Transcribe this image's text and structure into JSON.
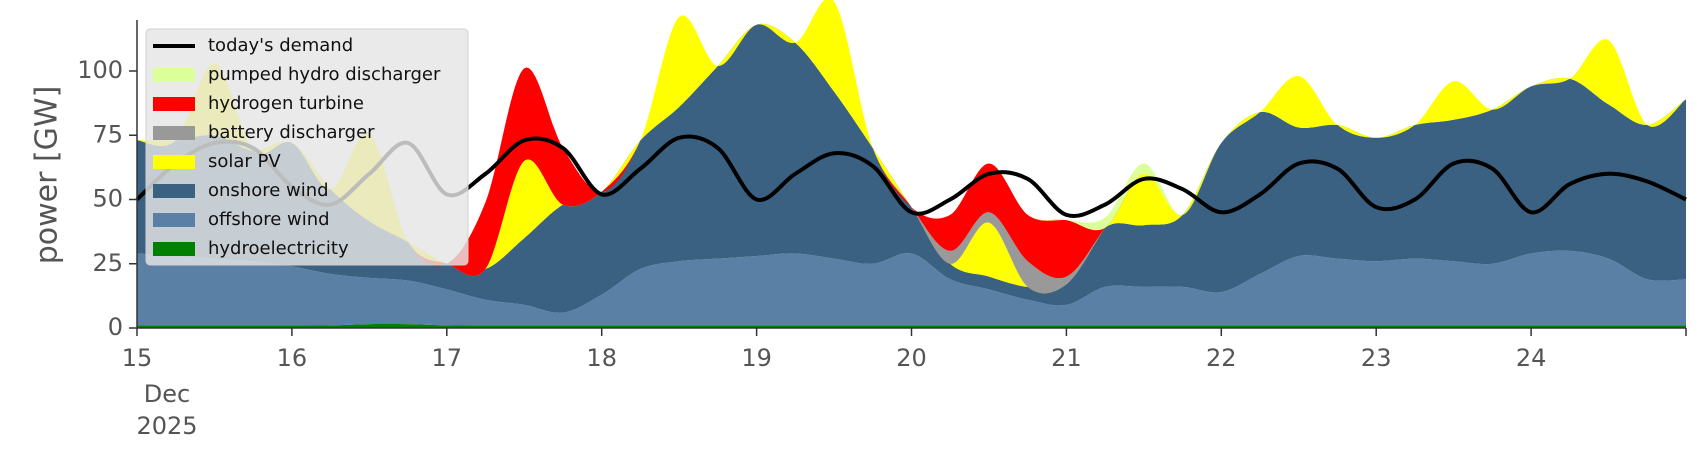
{
  "chart_data": {
    "type": "area",
    "title": "",
    "xlabel": "",
    "ylabel": "power [GW]",
    "ylim": [
      0,
      120
    ],
    "xlim": [
      "2025-12-15",
      "2025-12-25"
    ],
    "y_ticks": [
      0,
      25,
      50,
      75,
      100
    ],
    "x_ticks": [
      "2025-12-15",
      "2025-12-16",
      "2025-12-17",
      "2025-12-18",
      "2025-12-19",
      "2025-12-20",
      "2025-12-21",
      "2025-12-22",
      "2025-12-23",
      "2025-12-24"
    ],
    "x_tick_labels": [
      "15",
      "16",
      "17",
      "18",
      "19",
      "20",
      "21",
      "22",
      "23",
      "24"
    ],
    "x_tick_sublabels": [
      "Dec",
      "2025"
    ],
    "grid": false,
    "legend_position": "top-left",
    "x": [
      "2025-12-15 00:00",
      "2025-12-15 06:00",
      "2025-12-15 12:00",
      "2025-12-15 18:00",
      "2025-12-16 00:00",
      "2025-12-16 06:00",
      "2025-12-16 12:00",
      "2025-12-16 18:00",
      "2025-12-17 00:00",
      "2025-12-17 06:00",
      "2025-12-17 12:00",
      "2025-12-17 18:00",
      "2025-12-18 00:00",
      "2025-12-18 06:00",
      "2025-12-18 12:00",
      "2025-12-18 18:00",
      "2025-12-19 00:00",
      "2025-12-19 06:00",
      "2025-12-19 12:00",
      "2025-12-19 18:00",
      "2025-12-20 00:00",
      "2025-12-20 06:00",
      "2025-12-20 12:00",
      "2025-12-20 18:00",
      "2025-12-21 00:00",
      "2025-12-21 06:00",
      "2025-12-21 12:00",
      "2025-12-21 18:00",
      "2025-12-22 00:00",
      "2025-12-22 06:00",
      "2025-12-22 12:00",
      "2025-12-22 18:00",
      "2025-12-23 00:00",
      "2025-12-23 06:00",
      "2025-12-23 12:00",
      "2025-12-23 18:00",
      "2025-12-24 00:00",
      "2025-12-24 06:00",
      "2025-12-24 12:00",
      "2025-12-24 18:00",
      "2025-12-25 00:00"
    ],
    "series": [
      {
        "name": "hydroelectricity",
        "color": "#008000",
        "values": [
          1,
          1,
          1,
          1,
          1,
          1,
          1.5,
          1.5,
          1,
          1,
          1,
          1,
          1,
          1,
          1,
          1,
          1,
          1,
          1,
          1,
          1,
          1,
          1,
          1,
          1,
          1,
          1,
          1,
          1,
          1,
          1,
          1,
          1,
          1,
          1,
          1,
          1,
          1,
          1,
          1,
          1
        ]
      },
      {
        "name": "offshore wind",
        "color": "#5b80a5",
        "values": [
          28,
          27,
          26,
          25,
          23,
          20,
          18,
          17,
          14,
          10,
          8,
          5,
          12,
          22,
          25,
          26,
          27,
          28,
          26,
          24,
          28,
          18,
          14,
          10,
          8,
          15,
          15,
          15,
          13,
          20,
          27,
          26,
          25,
          26,
          25,
          24,
          28,
          29,
          26,
          18,
          18
        ]
      },
      {
        "name": "onshore wind",
        "color": "#3b6182",
        "values": [
          44,
          45,
          48,
          43,
          48,
          33,
          22,
          15,
          10,
          12,
          26,
          42,
          40,
          50,
          60,
          75,
          90,
          82,
          65,
          45,
          18,
          6,
          5,
          5,
          8,
          23,
          24,
          28,
          58,
          63,
          50,
          52,
          48,
          52,
          55,
          60,
          65,
          67,
          60,
          60,
          70
        ]
      },
      {
        "name": "solar PV",
        "color": "#ffff00",
        "values": [
          0,
          0,
          28,
          0,
          0,
          0,
          34,
          0,
          0,
          0,
          30,
          0,
          0,
          0,
          35,
          0,
          0,
          0,
          35,
          0,
          0,
          0,
          21,
          0,
          0,
          0,
          20,
          0,
          0,
          0,
          20,
          0,
          0,
          0,
          15,
          0,
          0,
          0,
          25,
          0,
          0
        ]
      },
      {
        "name": "battery discharger",
        "color": "#999999",
        "values": [
          0,
          0,
          0,
          0,
          0,
          0,
          0,
          0,
          0,
          0,
          0,
          0,
          0,
          0,
          0,
          0,
          0,
          0,
          0,
          0,
          0,
          5,
          4,
          10,
          3,
          0,
          0,
          0,
          0,
          0,
          0,
          0,
          0,
          0,
          0,
          0,
          0,
          0,
          0,
          0,
          0
        ]
      },
      {
        "name": "hydrogen turbine",
        "color": "#ff0000",
        "values": [
          0,
          0,
          0,
          0,
          0,
          0,
          0,
          0,
          0,
          26,
          36,
          22,
          0,
          0,
          0,
          0,
          0,
          0,
          0,
          0,
          0,
          14,
          19,
          18,
          22,
          0,
          0,
          0,
          0,
          0,
          0,
          0,
          0,
          0,
          0,
          0,
          0,
          0,
          0,
          0,
          0
        ]
      },
      {
        "name": "pumped hydro discharger",
        "color": "#ddff99",
        "values": [
          0,
          0,
          0,
          0,
          0,
          0,
          0,
          0,
          0,
          0,
          0,
          0,
          0,
          0,
          0,
          0,
          0,
          0,
          0,
          0,
          0,
          0,
          0,
          0,
          0,
          4,
          4,
          0,
          0,
          0,
          0,
          0,
          0,
          0,
          0,
          0,
          0,
          0,
          0,
          0,
          0
        ]
      },
      {
        "name": "today's demand",
        "color": "#000000",
        "line": true,
        "values": [
          50,
          64,
          72,
          70,
          55,
          48,
          60,
          72,
          52,
          60,
          73,
          70,
          52,
          62,
          74,
          70,
          50,
          60,
          68,
          63,
          45,
          50,
          60,
          58,
          44,
          48,
          58,
          54,
          45,
          52,
          64,
          62,
          47,
          50,
          64,
          62,
          45,
          56,
          60,
          57,
          50
        ]
      }
    ],
    "legend_order": [
      "today's demand",
      "pumped hydro discharger",
      "hydrogen turbine",
      "battery discharger",
      "solar PV",
      "onshore wind",
      "offshore wind",
      "hydroelectricity"
    ]
  }
}
